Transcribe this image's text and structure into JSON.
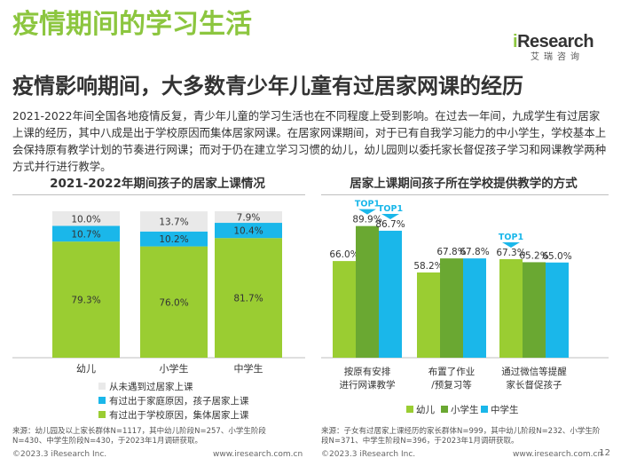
{
  "header": {
    "title": "疫情期间的学习生活",
    "subtitle": "疫情影响期间，大多数青少年儿童有过居家网课的经历",
    "description": "2021-2022年间全国各地疫情反复，青少年儿童的学习生活也在不同程度上受到影响。在过去一年间，九成学生有过居家上课的经历，其中八成是出于学校原因而集体居家网课。在居家网课期间，对于已有自我学习能力的中小学生，学校基本上会保持原有教学计划的节奏进行网课；而对于仍在建立学习习惯的幼儿，幼儿园则以委托家长督促孩子学习和网课教学两种方式并行进行教学。"
  },
  "logo": {
    "text": "iResearch",
    "sub": "艾瑞咨询"
  },
  "colors": {
    "green": "#9acd32",
    "green_title": "#8cc63f",
    "blue": "#1ab7ea",
    "grey": "#e9e9e9",
    "dark_green": "#6aa832",
    "text": "#333333"
  },
  "chart_data": [
    {
      "type": "bar",
      "stacked": true,
      "title": "2021-2022年期间孩子的居家上课情况",
      "categories": [
        "幼儿",
        "小学生",
        "中学生"
      ],
      "series": [
        {
          "name": "有过出于学校原因，集体居家上课",
          "values": [
            79.3,
            76.0,
            81.7
          ],
          "labels": [
            "79.3%",
            "76.0%",
            "81.7%"
          ],
          "color": "#9acd32"
        },
        {
          "name": "有过出于家庭原因，孩子居家上课",
          "values": [
            10.7,
            10.2,
            10.4
          ],
          "labels": [
            "10.7%",
            "10.2%",
            "10.4%"
          ],
          "color": "#1ab7ea"
        },
        {
          "name": "从未遇到过居家上课",
          "values": [
            10.0,
            13.7,
            7.9
          ],
          "labels": [
            "10.0%",
            "13.7%",
            "7.9%"
          ],
          "color": "#e9e9e9"
        }
      ],
      "ylim": [
        0,
        100
      ],
      "legend": "bottom-left",
      "note": "来源：幼儿园及以上家长群体N=1117，其中幼儿阶段N=257、小学生阶段N=430、中学生阶段N=430，于2023年1月调研获取。"
    },
    {
      "type": "bar",
      "title": "居家上课期间孩子所在学校提供教学的方式",
      "categories": [
        "按原有安排进行网课教学",
        "布置了作业/预复习等",
        "通过微信等提醒家长督促孩子"
      ],
      "category_lines": [
        [
          "按原有安排",
          "进行网课教学"
        ],
        [
          "布置了作业",
          "/预复习等"
        ],
        [
          "通过微信等提醒",
          "家长督促孩子"
        ]
      ],
      "series": [
        {
          "name": "幼儿",
          "values": [
            66.0,
            58.2,
            67.3
          ],
          "labels": [
            "66.0%",
            "58.2%",
            "67.3%"
          ],
          "color": "#9acd32"
        },
        {
          "name": "小学生",
          "values": [
            89.9,
            67.8,
            65.2
          ],
          "labels": [
            "89.9%",
            "67.8%",
            "65.2%"
          ],
          "color": "#6aa832"
        },
        {
          "name": "中学生",
          "values": [
            86.7,
            67.8,
            65.0
          ],
          "labels": [
            "86.7%",
            "67.8%",
            "65.0%"
          ],
          "color": "#1ab7ea"
        }
      ],
      "ylim": [
        0,
        100
      ],
      "badges": [
        {
          "text": "TOP1",
          "category": 0,
          "series": 1
        },
        {
          "text": "TOP1",
          "category": 0,
          "series": 2
        },
        {
          "text": "TOP1",
          "category": 2,
          "series": 0
        }
      ],
      "legend": "bottom",
      "note": "来源：子女有过居家上课经历的家长群体N=999，其中幼儿阶段N=232、小学生阶段N=371、中学生阶段N=396，于2023年1月调研获取。"
    }
  ],
  "footer": {
    "left_copyright": "©2023.3 iResearch Inc.",
    "left_url": "www.iresearch.com.cn",
    "right_copyright": "©2023.3 iResearch Inc.",
    "right_url": "www.iresearch.com.cn",
    "page": "12"
  }
}
